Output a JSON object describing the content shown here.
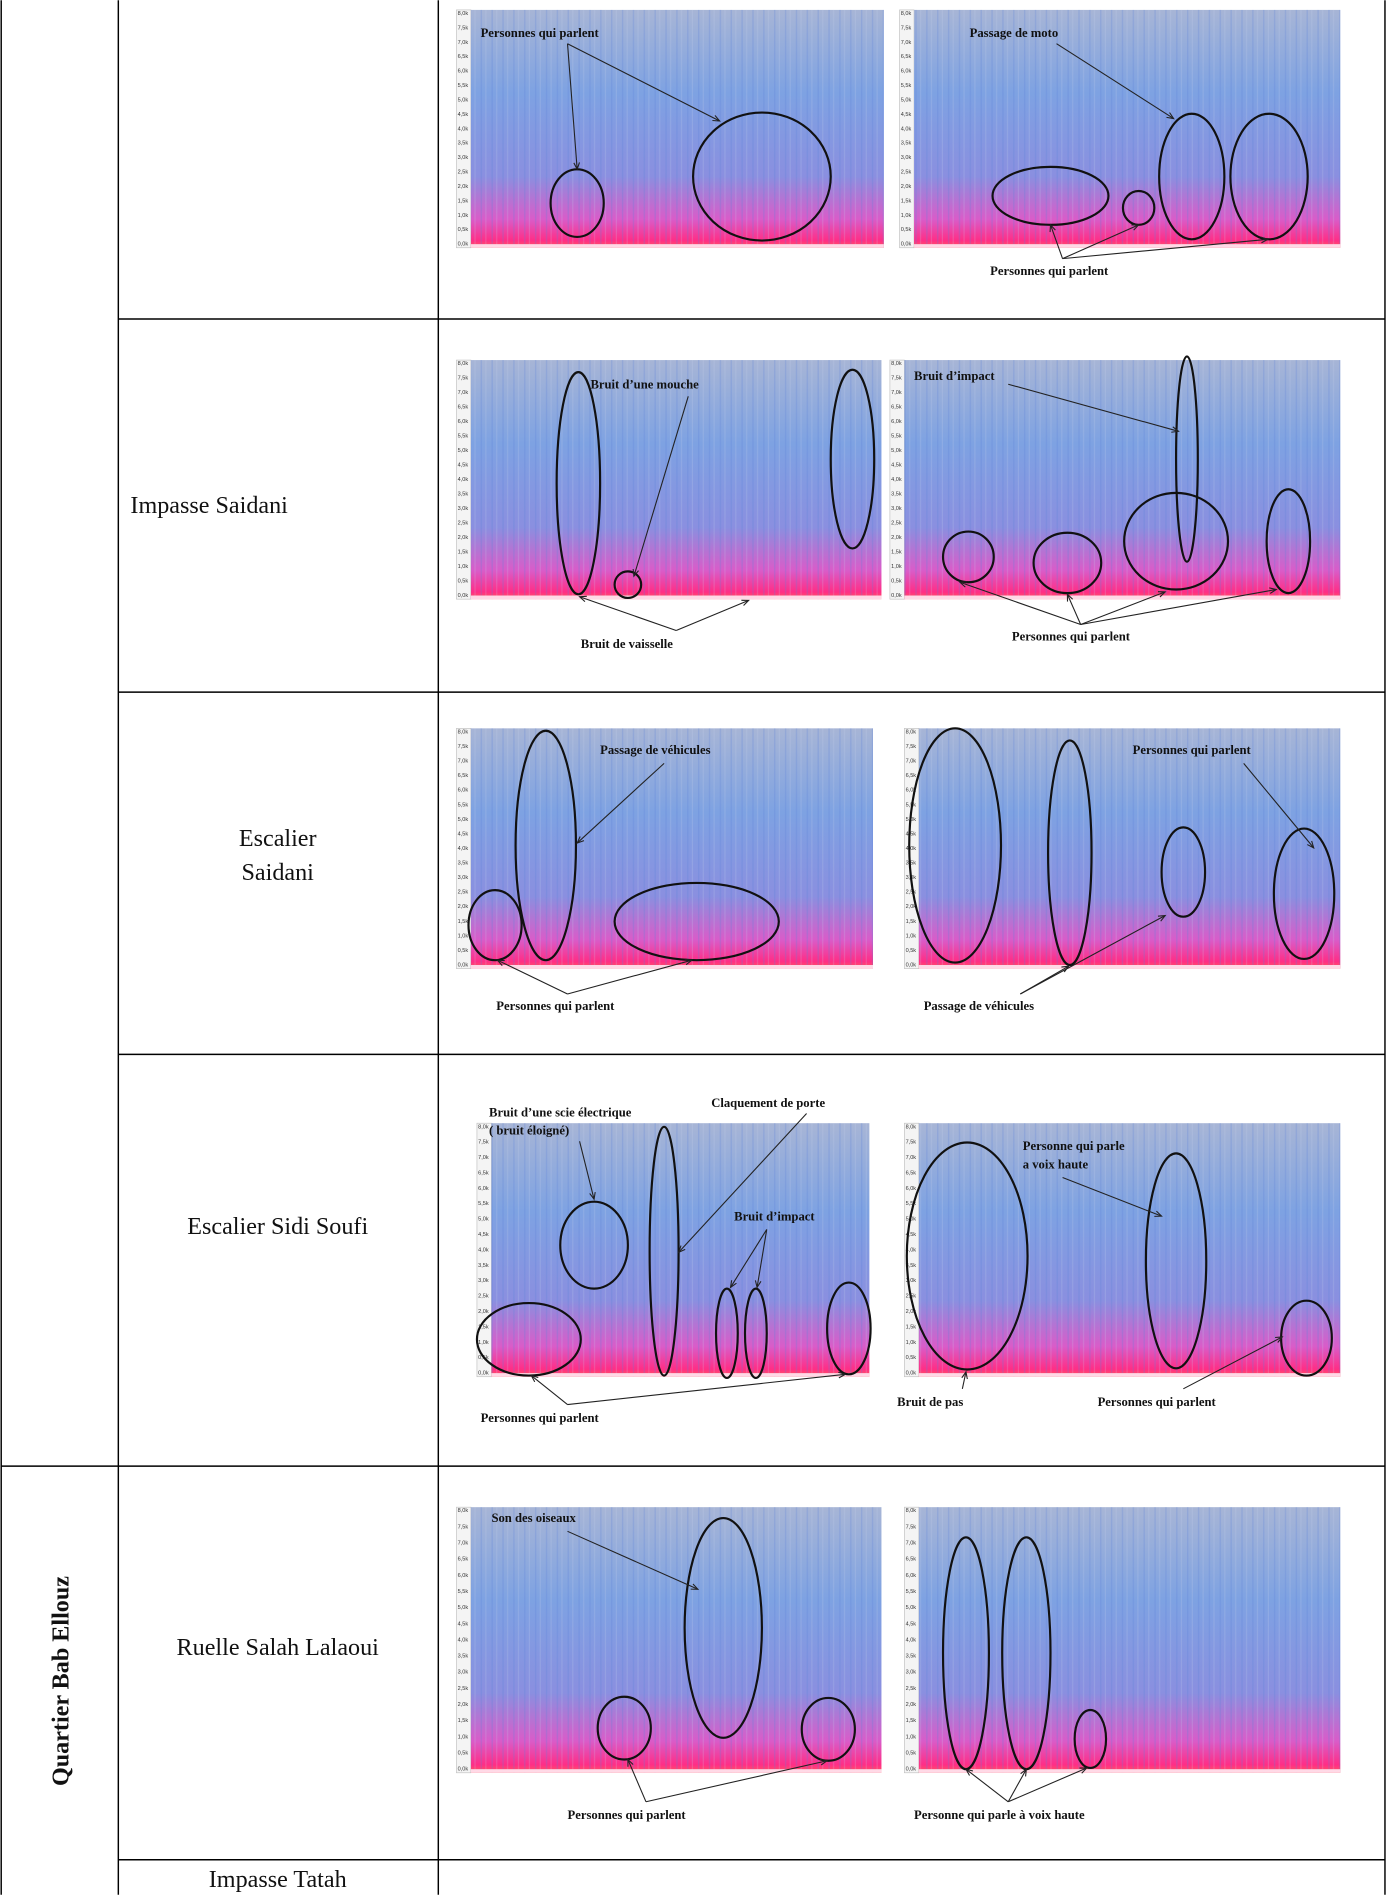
{
  "table": {
    "quarter": "Quartier Bab Ellouz",
    "frequency_ticks": [
      "8,0k",
      "7,5k",
      "7,0k",
      "6,5k",
      "6,0k",
      "5,5k",
      "5,0k",
      "4,5k",
      "4,0k",
      "3,5k",
      "3,0k",
      "2,5k",
      "2,0k",
      "1,5k",
      "1,0k",
      "0,5k",
      "0,0k"
    ],
    "rows": [
      {
        "spectrograms": [
          {
            "labels": [
              "Personnes qui parlent"
            ]
          },
          {
            "labels": [
              "Passage de moto",
              "Personnes qui parlent"
            ]
          }
        ]
      },
      {
        "location": [
          "Impasse Saidani"
        ],
        "spectrograms": [
          {
            "labels": [
              "Bruit d’une mouche",
              "Bruit de vaisselle"
            ]
          },
          {
            "labels": [
              "Bruit d’impact",
              "Personnes qui parlent"
            ]
          }
        ]
      },
      {
        "location": [
          "Escalier",
          "Saidani"
        ],
        "spectrograms": [
          {
            "labels": [
              "Passage de véhicules",
              "Personnes qui parlent"
            ]
          },
          {
            "labels": [
              "Personnes qui parlent",
              "Passage de véhicules"
            ]
          }
        ]
      },
      {
        "location": [
          "Escalier Sidi Soufi"
        ],
        "spectrograms": [
          {
            "labels": [
              "Bruit d’une scie électrique",
              "( bruit éloigné)",
              "Claquement de porte",
              "Bruit d’impact",
              "Personnes qui parlent"
            ]
          },
          {
            "labels": [
              "Personne qui  parle",
              "a voix haute",
              "Bruit de pas",
              "Personnes qui parlent"
            ]
          }
        ]
      },
      {
        "location": [
          "Ruelle Salah Lalaoui"
        ],
        "spectrograms": [
          {
            "labels": [
              "Son des oiseaux",
              "Personnes qui parlent"
            ]
          },
          {
            "labels": [
              "Personne qui parle à voix haute"
            ]
          }
        ]
      },
      {
        "location": [
          "Impasse Tatah"
        ]
      }
    ]
  }
}
